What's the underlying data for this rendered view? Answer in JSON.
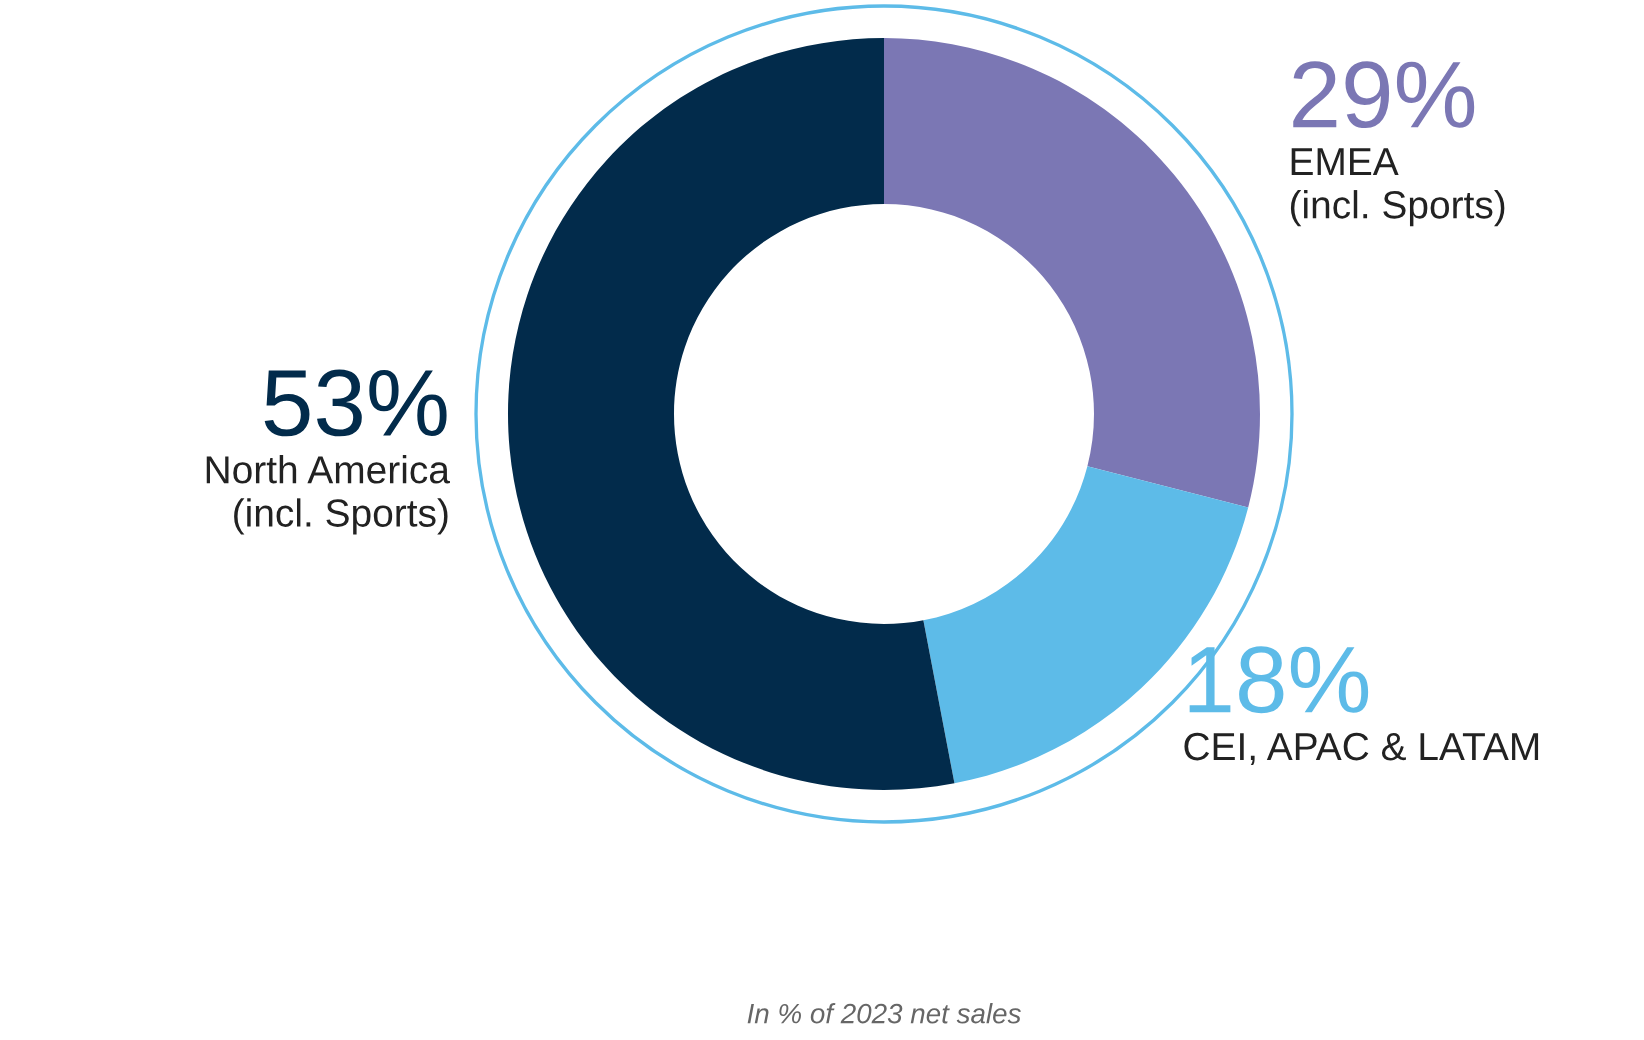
{
  "chart_data": {
    "type": "donut",
    "categories": [
      "EMEA\n(incl. Sports)",
      "CEI, APAC & LATAM",
      "North America\n(incl. Sports)"
    ],
    "values": [
      29,
      18,
      53
    ],
    "colors": [
      "#7b77b4",
      "#5dbbe8",
      "#022b4b"
    ],
    "value_labels": [
      "29%",
      "18%",
      "53%"
    ],
    "annotations": [
      "In % of 2023 net sales"
    ]
  }
}
